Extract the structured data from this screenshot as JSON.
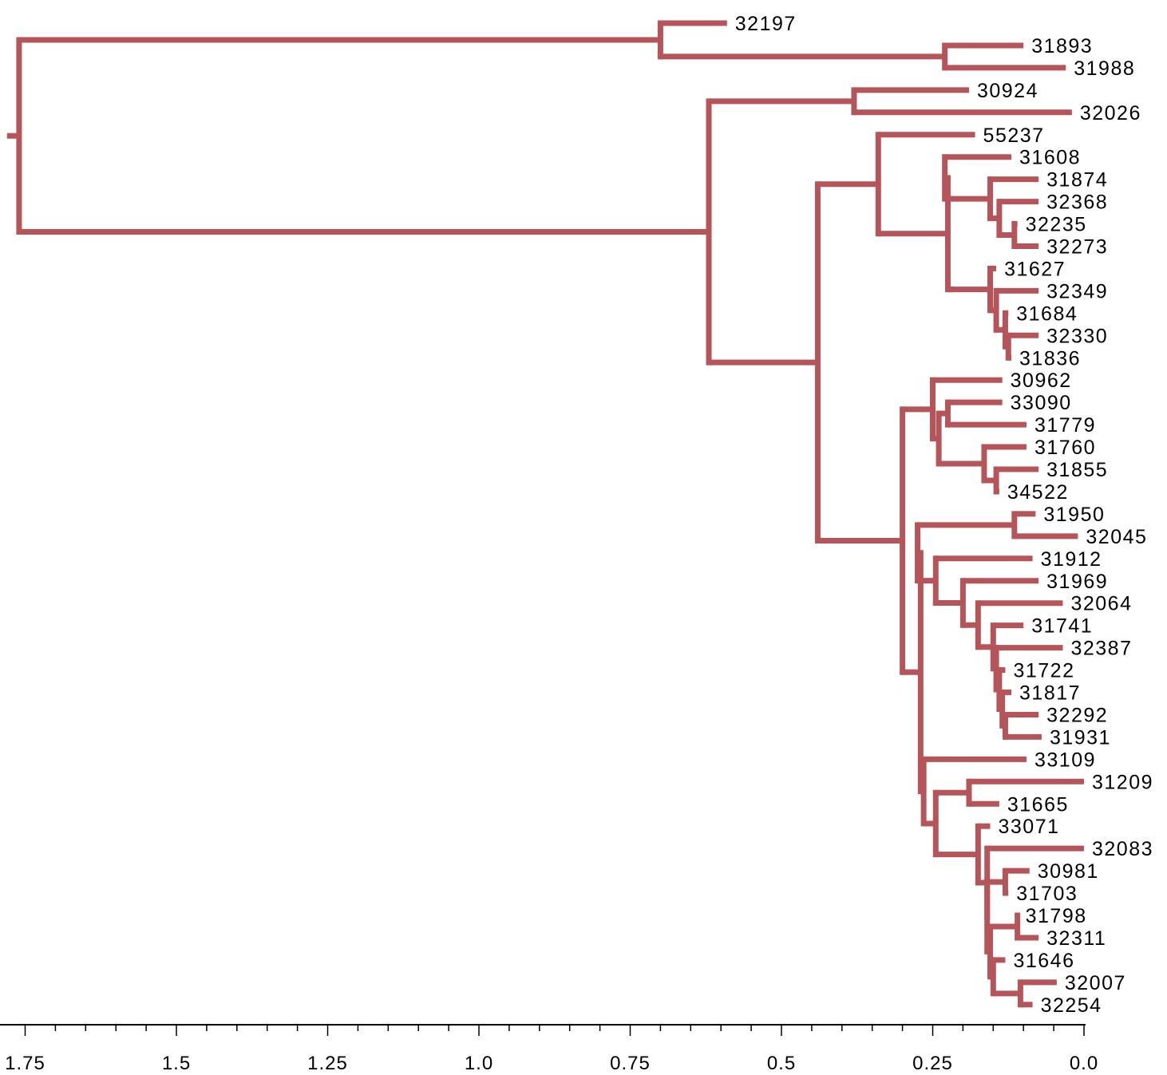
{
  "chart_data": {
    "type": "dendrogram",
    "branch_color": "#b5555a",
    "x_axis": {
      "reversed": true,
      "range": [
        1.78,
        0.0
      ],
      "ticks": [
        {
          "value": 1.75,
          "label": "1.75"
        },
        {
          "value": 1.5,
          "label": "1.5"
        },
        {
          "value": 1.25,
          "label": "1.25"
        },
        {
          "value": 1.0,
          "label": "1.0"
        },
        {
          "value": 0.75,
          "label": "0.75"
        },
        {
          "value": 0.5,
          "label": "0.5"
        },
        {
          "value": 0.25,
          "label": "0.25"
        },
        {
          "value": 0.0,
          "label": "0.0"
        }
      ],
      "minor_tick_step": 0.05
    },
    "root_height": 1.76,
    "root_stub_start": 1.78,
    "tree": {
      "h": 1.76,
      "children": [
        {
          "h": 0.7,
          "children": [
            {
              "leaf": "32197",
              "h": 0.59
            },
            {
              "h": 0.23,
              "children": [
                {
                  "leaf": "31893",
                  "h": 0.1
                },
                {
                  "leaf": "31988",
                  "h": 0.03
                }
              ]
            }
          ]
        },
        {
          "h": 0.62,
          "children": [
            {
              "h": 0.38,
              "children": [
                {
                  "leaf": "30924",
                  "h": 0.19
                },
                {
                  "leaf": "32026",
                  "h": 0.02
                }
              ]
            },
            {
              "h": 0.44,
              "children": [
                {
                  "h": 0.34,
                  "children": [
                    {
                      "leaf": "55237",
                      "h": 0.18
                    },
                    {
                      "h": 0.225,
                      "children": [
                        {
                          "h": 0.23,
                          "children": [
                            {
                              "leaf": "31608",
                              "h": 0.12
                            },
                            {
                              "h": 0.155,
                              "children": [
                                {
                                  "leaf": "31874",
                                  "h": 0.075
                                },
                                {
                                  "h": 0.14,
                                  "children": [
                                    {
                                      "leaf": "32368",
                                      "h": 0.075
                                    },
                                    {
                                      "h": 0.115,
                                      "children": [
                                        {
                                          "leaf": "32235",
                                          "h": 0.11
                                        },
                                        {
                                          "leaf": "32273",
                                          "h": 0.075
                                        }
                                      ]
                                    }
                                  ]
                                }
                              ]
                            }
                          ]
                        },
                        {
                          "h": 0.22,
                          "children": [
                            {
                              "h": 0.155,
                              "children": [
                                {
                                  "leaf": "31627",
                                  "h": 0.145
                                },
                                {
                                  "h": 0.145,
                                  "children": [
                                    {
                                      "leaf": "32349",
                                      "h": 0.075
                                    },
                                    {
                                      "h": 0.13,
                                      "children": [
                                        {
                                          "leaf": "31684",
                                          "h": 0.125
                                        },
                                        {
                                          "h": 0.125,
                                          "children": [
                                            {
                                              "leaf": "32330",
                                              "h": 0.075
                                            },
                                            {
                                              "leaf": "31836",
                                              "h": 0.12
                                            }
                                          ]
                                        }
                                      ]
                                    }
                                  ]
                                }
                              ]
                            }
                          ]
                        }
                      ]
                    }
                  ]
                },
                {
                  "h": 0.3,
                  "children": [
                    {
                      "h": 0.25,
                      "children": [
                        {
                          "leaf": "30962",
                          "h": 0.135
                        },
                        {
                          "h": 0.24,
                          "children": [
                            {
                              "h": 0.225,
                              "children": [
                                {
                                  "leaf": "33090",
                                  "h": 0.135
                                },
                                {
                                  "leaf": "31779",
                                  "h": 0.095
                                }
                              ]
                            },
                            {
                              "h": 0.165,
                              "children": [
                                {
                                  "leaf": "31760",
                                  "h": 0.095
                                },
                                {
                                  "h": 0.145,
                                  "children": [
                                    {
                                      "leaf": "31855",
                                      "h": 0.075
                                    },
                                    {
                                      "leaf": "34522",
                                      "h": 0.14
                                    }
                                  ]
                                }
                              ]
                            }
                          ]
                        }
                      ]
                    },
                    {
                      "h": 0.27,
                      "children": [
                        {
                          "h": 0.275,
                          "children": [
                            {
                              "h": 0.115,
                              "children": [
                                {
                                  "leaf": "31950",
                                  "h": 0.08
                                },
                                {
                                  "leaf": "32045",
                                  "h": 0.01
                                }
                              ]
                            },
                            {
                              "h": 0.245,
                              "children": [
                                {
                                  "leaf": "31912",
                                  "h": 0.085
                                },
                                {
                                  "h": 0.2,
                                  "children": [
                                    {
                                      "leaf": "31969",
                                      "h": 0.075
                                    },
                                    {
                                      "h": 0.175,
                                      "children": [
                                        {
                                          "leaf": "32064",
                                          "h": 0.035
                                        },
                                        {
                                          "h": 0.15,
                                          "children": [
                                            {
                                              "leaf": "31741",
                                              "h": 0.1
                                            },
                                            {
                                              "h": 0.145,
                                              "children": [
                                                {
                                                  "leaf": "32387",
                                                  "h": 0.035
                                                },
                                                {
                                                  "h": 0.14,
                                                  "children": [
                                                    {
                                                      "leaf": "31722",
                                                      "h": 0.13
                                                    },
                                                    {
                                                      "h": 0.135,
                                                      "children": [
                                                        {
                                                          "leaf": "31817",
                                                          "h": 0.12
                                                        },
                                                        {
                                                          "h": 0.13,
                                                          "children": [
                                                            {
                                                              "leaf": "32292",
                                                              "h": 0.075
                                                            },
                                                            {
                                                              "leaf": "31931",
                                                              "h": 0.07
                                                            }
                                                          ]
                                                        }
                                                      ]
                                                    }
                                                  ]
                                                }
                                              ]
                                            }
                                          ]
                                        }
                                      ]
                                    }
                                  ]
                                }
                              ]
                            }
                          ]
                        },
                        {
                          "h": 0.265,
                          "children": [
                            {
                              "leaf": "33109",
                              "h": 0.095
                            },
                            {
                              "h": 0.245,
                              "children": [
                                {
                                  "h": 0.19,
                                  "children": [
                                    {
                                      "leaf": "31209",
                                      "h": 0.0
                                    },
                                    {
                                      "leaf": "31665",
                                      "h": 0.14
                                    }
                                  ]
                                },
                                {
                                  "h": 0.175,
                                  "children": [
                                    {
                                      "leaf": "33071",
                                      "h": 0.155
                                    },
                                    {
                                      "h": 0.16,
                                      "children": [
                                        {
                                          "leaf": "32083",
                                          "h": 0.0
                                        },
                                        {
                                          "h": 0.16,
                                          "children": [
                                            {
                                              "h": 0.13,
                                              "children": [
                                                {
                                                  "leaf": "30981",
                                                  "h": 0.09
                                                },
                                                {
                                                  "leaf": "31703",
                                                  "h": 0.125
                                                }
                                              ]
                                            },
                                            {
                                              "h": 0.155,
                                              "children": [
                                                {
                                                  "h": 0.11,
                                                  "children": [
                                                    {
                                                      "leaf": "31798",
                                                      "h": 0.11
                                                    },
                                                    {
                                                      "leaf": "32311",
                                                      "h": 0.075
                                                    }
                                                  ]
                                                },
                                                {
                                                  "h": 0.15,
                                                  "children": [
                                                    {
                                                      "leaf": "31646",
                                                      "h": 0.13
                                                    },
                                                    {
                                                      "h": 0.105,
                                                      "children": [
                                                        {
                                                          "leaf": "32007",
                                                          "h": 0.045
                                                        },
                                                        {
                                                          "leaf": "32254",
                                                          "h": 0.085
                                                        }
                                                      ]
                                                    }
                                                  ]
                                                }
                                              ]
                                            }
                                          ]
                                        }
                                      ]
                                    }
                                  ]
                                }
                              ]
                            }
                          ]
                        }
                      ]
                    }
                  ]
                }
              ]
            }
          ]
        }
      ]
    }
  }
}
